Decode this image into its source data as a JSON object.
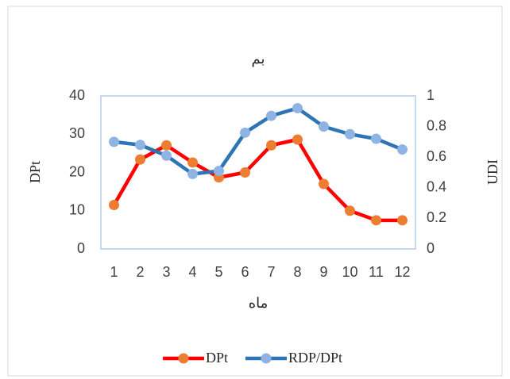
{
  "chart_data": {
    "type": "line",
    "title": "بم",
    "xlabel": "ماه",
    "ylabel": "DPt",
    "y2label": "UDI",
    "categories": [
      "1",
      "2",
      "3",
      "4",
      "5",
      "6",
      "7",
      "8",
      "9",
      "10",
      "11",
      "12"
    ],
    "ylim": [
      0,
      40
    ],
    "yticks": [
      0,
      10,
      20,
      30,
      40
    ],
    "y2lim": [
      0,
      1
    ],
    "y2ticks": [
      0,
      0.2,
      0.4,
      0.6,
      0.8,
      1
    ],
    "grid": false,
    "legend": "bottom",
    "series": [
      {
        "name": "DPt",
        "color": "#ff0000",
        "marker_color": "#ed7d31",
        "values": [
          11.5,
          23.4,
          27.1,
          22.6,
          18.7,
          20.0,
          27.1,
          28.6,
          17.0,
          10.0,
          7.5,
          7.5
        ]
      },
      {
        "name": "RDP/DPt",
        "color": "#2e75b6",
        "marker_color": "#8fb4e3",
        "axis": "y2",
        "values": [
          0.7,
          0.68,
          0.61,
          0.49,
          0.51,
          0.76,
          0.87,
          0.92,
          0.8,
          0.75,
          0.72,
          0.65
        ]
      }
    ]
  }
}
